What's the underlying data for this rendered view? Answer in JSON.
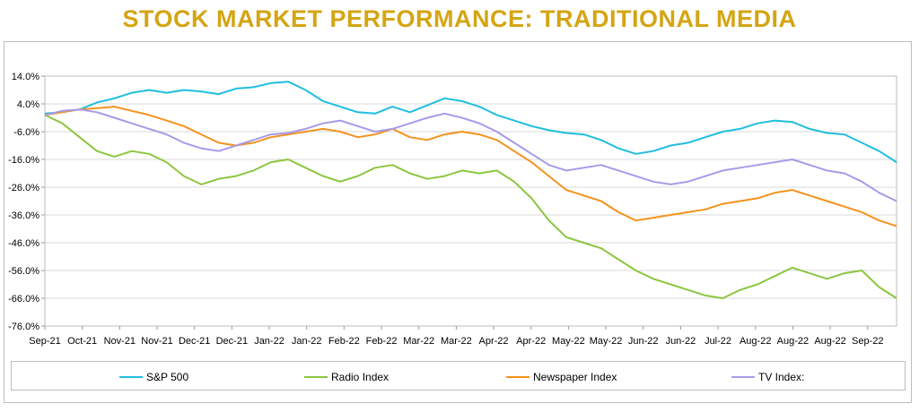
{
  "chart_data": {
    "type": "line",
    "title": "STOCK MARKET PERFORMANCE: TRADITIONAL MEDIA",
    "x_tick_labels": [
      "Sep-21",
      "Oct-21",
      "Nov-21",
      "Nov-21",
      "Dec-21",
      "Dec-21",
      "Jan-22",
      "Jan-22",
      "Feb-22",
      "Feb-22",
      "Mar-22",
      "Mar-22",
      "Apr-22",
      "Apr-22",
      "May-22",
      "May-22",
      "Jun-22",
      "Jun-22",
      "Jul-22",
      "Aug-22",
      "Aug-22",
      "Aug-22",
      "Sep-22"
    ],
    "y_tick_labels": [
      "14.0%",
      "4.0%",
      "-6.0%",
      "-16.0%",
      "-26.0%",
      "-36.0%",
      "-46.0%",
      "-56.0%",
      "-66.0%",
      "-76.0%"
    ],
    "ylim": [
      -76,
      14
    ],
    "y_unit": "%",
    "grid": "horizontal",
    "legend_position": "bottom",
    "x": [
      "Sep-21",
      "Sep-21",
      "Oct-21",
      "Oct-21",
      "Oct-21",
      "Nov-21",
      "Nov-21",
      "Nov-21",
      "Nov-21",
      "Dec-21",
      "Dec-21",
      "Dec-21",
      "Dec-21",
      "Jan-22",
      "Jan-22",
      "Jan-22",
      "Jan-22",
      "Feb-22",
      "Feb-22",
      "Feb-22",
      "Feb-22",
      "Mar-22",
      "Mar-22",
      "Mar-22",
      "Mar-22",
      "Apr-22",
      "Apr-22",
      "Apr-22",
      "Apr-22",
      "May-22",
      "May-22",
      "May-22",
      "May-22",
      "Jun-22",
      "Jun-22",
      "Jun-22",
      "Jun-22",
      "Jul-22",
      "Jul-22",
      "Jul-22",
      "Jul-22",
      "Aug-22",
      "Aug-22",
      "Aug-22",
      "Aug-22",
      "Sep-22",
      "Sep-22",
      "Sep-22",
      "Sep-22",
      "Sep-22"
    ],
    "series": [
      {
        "name": "S&P 500",
        "color": "#1FBEDF",
        "values": [
          0.5,
          1.0,
          2.0,
          4.5,
          6.0,
          8.0,
          9.0,
          8.0,
          9.0,
          8.5,
          7.5,
          9.5,
          10.0,
          11.5,
          12.0,
          9.0,
          5.0,
          3.0,
          1.0,
          0.5,
          3.0,
          1.0,
          3.5,
          6.0,
          5.0,
          3.0,
          0.0,
          -2.0,
          -4.0,
          -5.5,
          -6.5,
          -7.0,
          -9.0,
          -12.0,
          -14.0,
          -13.0,
          -11.0,
          -10.0,
          -8.0,
          -6.0,
          -5.0,
          -3.0,
          -2.0,
          -2.5,
          -5.0,
          -6.5,
          -7.0,
          -10.0,
          -13.0,
          -17.0
        ]
      },
      {
        "name": "Radio Index",
        "color": "#8CC63F",
        "values": [
          0.0,
          -3.0,
          -8.0,
          -13.0,
          -15.0,
          -13.0,
          -14.0,
          -17.0,
          -22.0,
          -25.0,
          -23.0,
          -22.0,
          -20.0,
          -17.0,
          -16.0,
          -19.0,
          -22.0,
          -24.0,
          -22.0,
          -19.0,
          -18.0,
          -21.0,
          -23.0,
          -22.0,
          -20.0,
          -21.0,
          -20.0,
          -24.0,
          -30.0,
          -38.0,
          -44.0,
          -46.0,
          -48.0,
          -52.0,
          -56.0,
          -59.0,
          -61.0,
          -63.0,
          -65.0,
          -66.0,
          -63.0,
          -61.0,
          -58.0,
          -55.0,
          -57.0,
          -59.0,
          -57.0,
          -56.0,
          -62.0,
          -66.0
        ]
      },
      {
        "name": "Newspaper Index",
        "color": "#F5921E",
        "values": [
          0.0,
          1.0,
          2.0,
          2.5,
          3.0,
          1.5,
          0.0,
          -2.0,
          -4.0,
          -7.0,
          -10.0,
          -11.0,
          -10.0,
          -8.0,
          -7.0,
          -6.0,
          -5.0,
          -6.0,
          -8.0,
          -7.0,
          -5.0,
          -8.0,
          -9.0,
          -7.0,
          -6.0,
          -7.0,
          -9.0,
          -13.0,
          -17.0,
          -22.0,
          -27.0,
          -29.0,
          -31.0,
          -35.0,
          -38.0,
          -37.0,
          -36.0,
          -35.0,
          -34.0,
          -32.0,
          -31.0,
          -30.0,
          -28.0,
          -27.0,
          -29.0,
          -31.0,
          -33.0,
          -35.0,
          -38.0,
          -40.0
        ]
      },
      {
        "name": "TV Index:",
        "color": "#A69BE8",
        "values": [
          0.0,
          1.5,
          2.0,
          1.0,
          -1.0,
          -3.0,
          -5.0,
          -7.0,
          -10.0,
          -12.0,
          -13.0,
          -11.0,
          -9.0,
          -7.0,
          -6.5,
          -5.0,
          -3.0,
          -2.0,
          -4.0,
          -6.0,
          -5.0,
          -3.0,
          -1.0,
          0.5,
          -1.0,
          -3.0,
          -6.0,
          -10.0,
          -14.0,
          -18.0,
          -20.0,
          -19.0,
          -18.0,
          -20.0,
          -22.0,
          -24.0,
          -25.0,
          -24.0,
          -22.0,
          -20.0,
          -19.0,
          -18.0,
          -17.0,
          -16.0,
          -18.0,
          -20.0,
          -21.0,
          -24.0,
          -28.0,
          -31.0
        ]
      }
    ]
  },
  "legend": {
    "items": [
      {
        "label": "S&P 500",
        "color": "#1FBEDF"
      },
      {
        "label": "Radio Index",
        "color": "#8CC63F"
      },
      {
        "label": "Newspaper Index",
        "color": "#F5921E"
      },
      {
        "label": "TV Index:",
        "color": "#A69BE8"
      }
    ]
  }
}
